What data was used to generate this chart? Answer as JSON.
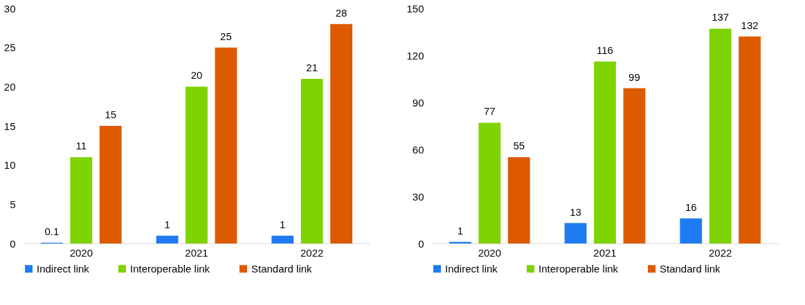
{
  "chart_data": [
    {
      "type": "bar",
      "categories": [
        "2020",
        "2021",
        "2022"
      ],
      "series": [
        {
          "name": "Indirect link",
          "color": "#1f7bf2",
          "values": [
            0.1,
            1,
            1
          ]
        },
        {
          "name": "Interoperable link",
          "color": "#7ed300",
          "values": [
            11,
            20,
            21
          ]
        },
        {
          "name": "Standard link",
          "color": "#dd5a00",
          "values": [
            15,
            25,
            28
          ]
        }
      ],
      "ylim": [
        0,
        30
      ],
      "yticks": [
        0,
        5,
        10,
        15,
        20,
        25,
        30
      ],
      "data_labels": true,
      "legend": "bottom",
      "grid": false
    },
    {
      "type": "bar",
      "categories": [
        "2020",
        "2021",
        "2022"
      ],
      "series": [
        {
          "name": "Indirect link",
          "color": "#1f7bf2",
          "values": [
            1,
            13,
            16
          ]
        },
        {
          "name": "Interoperable link",
          "color": "#7ed300",
          "values": [
            77,
            116,
            137
          ]
        },
        {
          "name": "Standard link",
          "color": "#dd5a00",
          "values": [
            55,
            99,
            132
          ]
        }
      ],
      "ylim": [
        0,
        150
      ],
      "yticks": [
        0,
        30,
        60,
        90,
        120,
        150
      ],
      "data_labels": true,
      "legend": "bottom",
      "grid": false
    }
  ]
}
